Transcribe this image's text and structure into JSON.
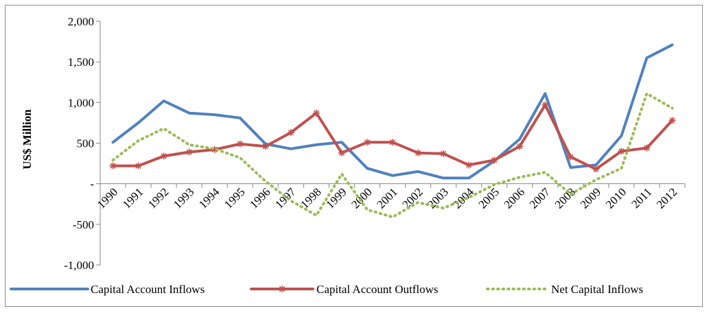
{
  "chart_data": {
    "type": "line",
    "title": "",
    "xlabel": "",
    "ylabel": "US$ Million",
    "ylim": [
      -1000,
      2000
    ],
    "yticks": [
      2000,
      1500,
      1000,
      500,
      0,
      -500,
      -1000
    ],
    "ytick_labels": [
      "2,000",
      "1,500",
      "1,000",
      "500",
      "-",
      "-500",
      "-1,000"
    ],
    "categories": [
      "1990",
      "1991",
      "1992",
      "1993",
      "1994",
      "1995",
      "1996",
      "1997",
      "1998",
      "1999",
      "2000",
      "2001",
      "2002",
      "2003",
      "2004",
      "2005",
      "2006",
      "2007",
      "2008",
      "2009",
      "2010",
      "2011",
      "2012"
    ],
    "grid": false,
    "legend_position": "bottom",
    "series": [
      {
        "name": "Capital Account Inflows",
        "style": "solid",
        "marker": "none",
        "color": "#4f81bd",
        "values": [
          510,
          750,
          1020,
          870,
          850,
          810,
          490,
          430,
          480,
          510,
          190,
          100,
          150,
          70,
          70,
          280,
          550,
          1110,
          200,
          230,
          590,
          1550,
          1710
        ]
      },
      {
        "name": "Capital Account Outflows",
        "style": "solid",
        "marker": "asterisk",
        "color": "#c0504d",
        "values": [
          220,
          220,
          340,
          390,
          420,
          490,
          460,
          630,
          870,
          380,
          510,
          510,
          380,
          370,
          230,
          290,
          460,
          970,
          330,
          180,
          400,
          440,
          780
        ]
      },
      {
        "name": "Net Capital Inflows",
        "style": "dotted",
        "marker": "none",
        "color": "#9bbb59",
        "values": [
          290,
          530,
          680,
          480,
          430,
          320,
          30,
          -210,
          -390,
          120,
          -320,
          -410,
          -230,
          -300,
          -170,
          -10,
          80,
          140,
          -130,
          50,
          190,
          1110,
          930
        ]
      }
    ]
  }
}
